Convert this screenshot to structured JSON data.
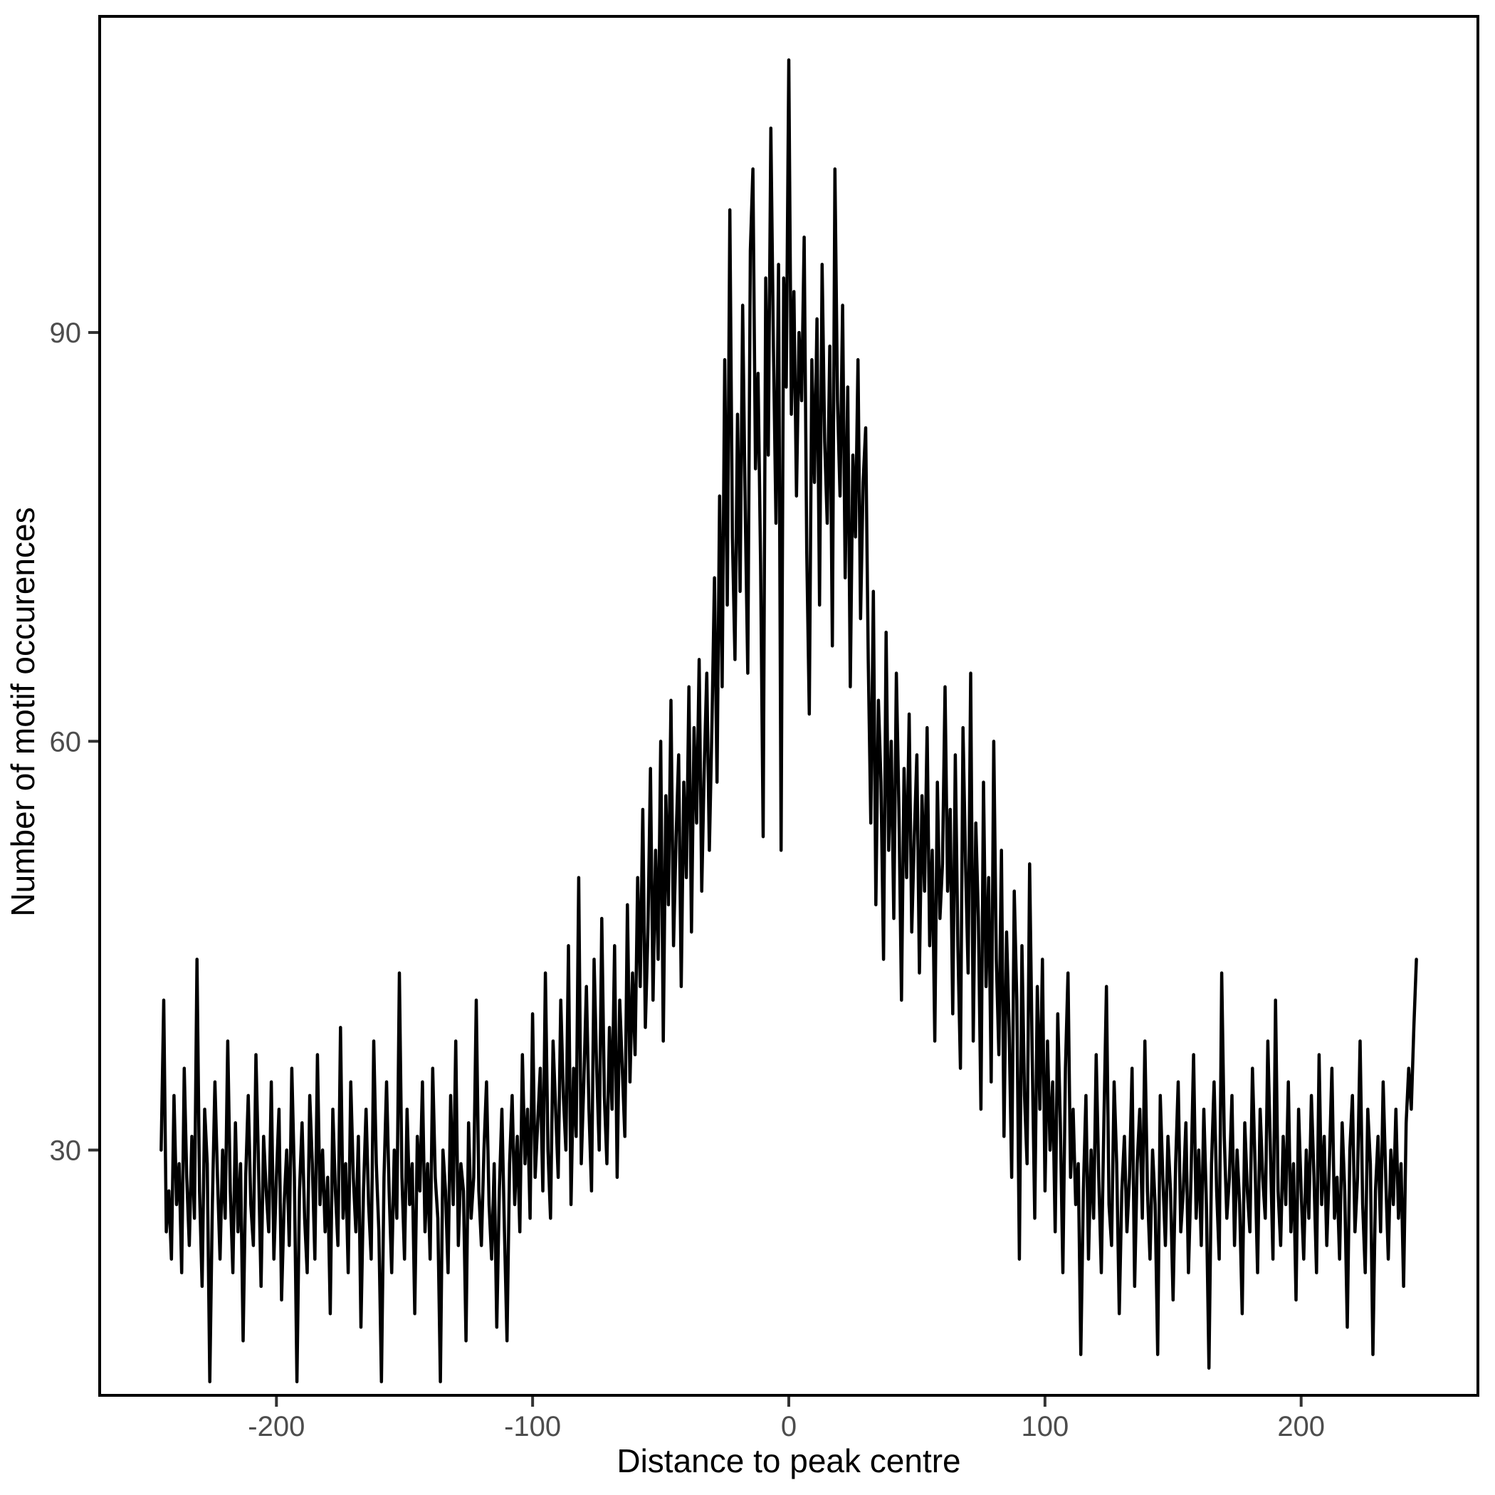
{
  "figure": {
    "background_color": "#ffffff",
    "line_color": "#000000",
    "panel_border_color": "#000000",
    "tick_mark_color": "#333333",
    "tick_label_color": "#4d4d4d",
    "axis_title_color": "#000000"
  },
  "chart_data": {
    "type": "line",
    "title": "",
    "xlabel": "Distance to peak centre",
    "ylabel": "Number of motif occurences",
    "x_ticks": [
      -200,
      -100,
      0,
      100,
      200
    ],
    "y_ticks": [
      30,
      60,
      90
    ],
    "xlim": [
      -269,
      269
    ],
    "ylim": [
      12,
      113.2
    ],
    "grid": false,
    "legend": false,
    "x_start": -245,
    "x_step": 1,
    "values": [
      30,
      41,
      24,
      27,
      22,
      34,
      26,
      29,
      21,
      36,
      28,
      23,
      31,
      25,
      44,
      27,
      20,
      33,
      29,
      13,
      26,
      35,
      28,
      22,
      30,
      25,
      38,
      27,
      21,
      32,
      24,
      29,
      16,
      28,
      34,
      26,
      23,
      37,
      29,
      20,
      31,
      27,
      24,
      35,
      22,
      28,
      33,
      19,
      26,
      30,
      23,
      36,
      28,
      13,
      27,
      32,
      25,
      21,
      34,
      29,
      22,
      37,
      26,
      30,
      24,
      28,
      18,
      33,
      27,
      23,
      39,
      25,
      29,
      21,
      35,
      28,
      24,
      31,
      17,
      27,
      33,
      26,
      22,
      38,
      29,
      24,
      13,
      28,
      35,
      27,
      21,
      30,
      25,
      43,
      28,
      22,
      33,
      26,
      29,
      18,
      31,
      27,
      35,
      24,
      29,
      22,
      36,
      28,
      25,
      13,
      30,
      27,
      21,
      34,
      26,
      38,
      23,
      29,
      27,
      16,
      32,
      25,
      28,
      41,
      27,
      23,
      30,
      35,
      26,
      22,
      29,
      17,
      27,
      33,
      24,
      16,
      29,
      34,
      26,
      31,
      24,
      37,
      29,
      33,
      25,
      40,
      28,
      32,
      36,
      27,
      43,
      30,
      25,
      38,
      33,
      28,
      41,
      34,
      30,
      45,
      26,
      36,
      31,
      50,
      29,
      35,
      42,
      33,
      27,
      44,
      36,
      30,
      47,
      34,
      29,
      39,
      33,
      45,
      28,
      41,
      36,
      31,
      48,
      35,
      43,
      37,
      50,
      42,
      55,
      39,
      46,
      58,
      41,
      52,
      44,
      60,
      38,
      56,
      48,
      63,
      45,
      53,
      59,
      42,
      57,
      50,
      64,
      46,
      61,
      54,
      66,
      49,
      58,
      65,
      52,
      61,
      72,
      57,
      78,
      64,
      88,
      70,
      99,
      75,
      66,
      84,
      71,
      92,
      77,
      65,
      96,
      102,
      80,
      87,
      73,
      53,
      94,
      81,
      105,
      89,
      76,
      95,
      52,
      94,
      86,
      110,
      84,
      93,
      78,
      90,
      85,
      97,
      74,
      62,
      88,
      79,
      91,
      70,
      95,
      82,
      76,
      89,
      67,
      102,
      85,
      78,
      92,
      72,
      86,
      64,
      81,
      75,
      88,
      69,
      79,
      83,
      66,
      54,
      71,
      48,
      63,
      57,
      44,
      68,
      52,
      60,
      47,
      65,
      55,
      41,
      58,
      50,
      62,
      46,
      53,
      59,
      43,
      56,
      49,
      61,
      45,
      52,
      38,
      57,
      47,
      51,
      64,
      49,
      55,
      40,
      59,
      45,
      36,
      61,
      51,
      43,
      65,
      38,
      54,
      47,
      33,
      57,
      42,
      50,
      35,
      60,
      44,
      37,
      52,
      31,
      46,
      39,
      28,
      49,
      41,
      22,
      45,
      34,
      29,
      51,
      37,
      25,
      42,
      33,
      44,
      27,
      38,
      30,
      35,
      24,
      40,
      32,
      21,
      36,
      43,
      28,
      33,
      26,
      29,
      15,
      27,
      34,
      22,
      30,
      25,
      37,
      28,
      21,
      32,
      42,
      26,
      23,
      35,
      29,
      18,
      27,
      31,
      24,
      28,
      36,
      20,
      29,
      33,
      25,
      38,
      27,
      22,
      30,
      26,
      15,
      34,
      28,
      23,
      31,
      27,
      19,
      29,
      35,
      24,
      27,
      32,
      21,
      28,
      37,
      25,
      30,
      23,
      33,
      26,
      14,
      29,
      35,
      27,
      22,
      43,
      31,
      25,
      28,
      34,
      23,
      30,
      26,
      18,
      32,
      27,
      24,
      36,
      29,
      21,
      33,
      28,
      25,
      38,
      30,
      22,
      41,
      27,
      23,
      31,
      26,
      35,
      24,
      29,
      19,
      33,
      27,
      22,
      30,
      25,
      34,
      28,
      21,
      37,
      26,
      31,
      23,
      29,
      36,
      25,
      28,
      22,
      32,
      27,
      17,
      30,
      34,
      24,
      28,
      38,
      26,
      21,
      33,
      29,
      15,
      27,
      31,
      24,
      35,
      28,
      22,
      30,
      26,
      33,
      25,
      29,
      20,
      32,
      36,
      33,
      39,
      44
    ]
  }
}
